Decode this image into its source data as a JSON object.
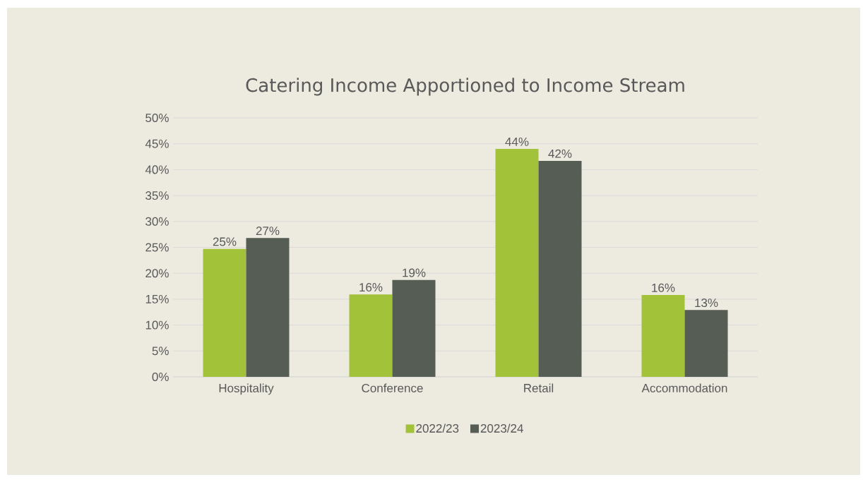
{
  "chart_data": {
    "type": "bar",
    "title": "Catering Income Apportioned to Income Stream",
    "categories": [
      "Hospitality",
      "Conference",
      "Retail",
      "Accommodation"
    ],
    "series": [
      {
        "name": "2022/23",
        "color": "#a2c23a",
        "values": [
          24.7,
          15.9,
          44.0,
          15.8
        ],
        "value_labels": [
          "25%",
          "16%",
          "44%",
          "16%"
        ]
      },
      {
        "name": "2023/24",
        "color": "#565d55",
        "values": [
          26.8,
          18.7,
          41.7,
          12.9
        ],
        "value_labels": [
          "27%",
          "19%",
          "42%",
          "13%"
        ]
      }
    ],
    "ylim": [
      0,
      50
    ],
    "yticks": [
      {
        "value": 0,
        "label": "0%"
      },
      {
        "value": 5,
        "label": "5%"
      },
      {
        "value": 10,
        "label": "10%"
      },
      {
        "value": 15,
        "label": "15%"
      },
      {
        "value": 20,
        "label": "20%"
      },
      {
        "value": 25,
        "label": "25%"
      },
      {
        "value": 30,
        "label": "30%"
      },
      {
        "value": 35,
        "label": "35%"
      },
      {
        "value": 40,
        "label": "40%"
      },
      {
        "value": 45,
        "label": "45%"
      },
      {
        "value": 50,
        "label": "50%"
      }
    ],
    "grid": "y",
    "legend": "bottom"
  }
}
